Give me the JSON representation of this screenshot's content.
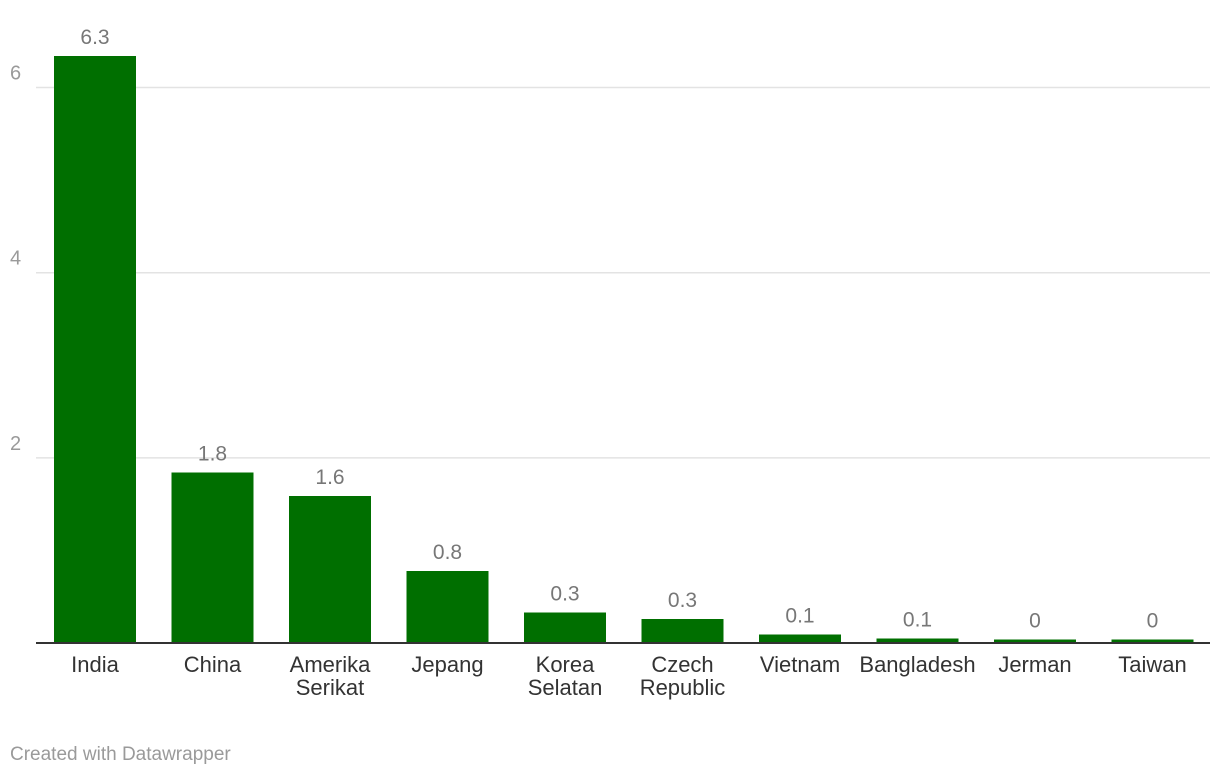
{
  "chart_data": {
    "type": "bar",
    "title": "",
    "xlabel": "",
    "ylabel": "",
    "categories": [
      [
        "India"
      ],
      [
        "China"
      ],
      [
        "Amerika",
        "Serikat"
      ],
      [
        "Jepang"
      ],
      [
        "Korea",
        "Selatan"
      ],
      [
        "Czech",
        "Republic"
      ],
      [
        "Vietnam"
      ],
      [
        "Bangladesh"
      ],
      [
        "Jerman"
      ],
      [
        "Taiwan"
      ]
    ],
    "values": [
      6.34,
      1.84,
      1.59,
      0.78,
      0.33,
      0.26,
      0.09,
      0.05,
      0.04,
      0.04
    ],
    "value_labels": [
      "6.3",
      "1.8",
      "1.6",
      "0.8",
      "0.3",
      "0.3",
      "0.1",
      "0.1",
      "0",
      "0"
    ],
    "ylim": [
      0,
      6.6
    ],
    "yticks": [
      2,
      4,
      6
    ],
    "ytick_labels": [
      "2",
      "4",
      "6"
    ],
    "grid": true,
    "colors": {
      "bar": "#006f00",
      "grid": "#e3e3e3",
      "axis": "#333333"
    }
  },
  "footer": {
    "credit": "Created with Datawrapper"
  }
}
